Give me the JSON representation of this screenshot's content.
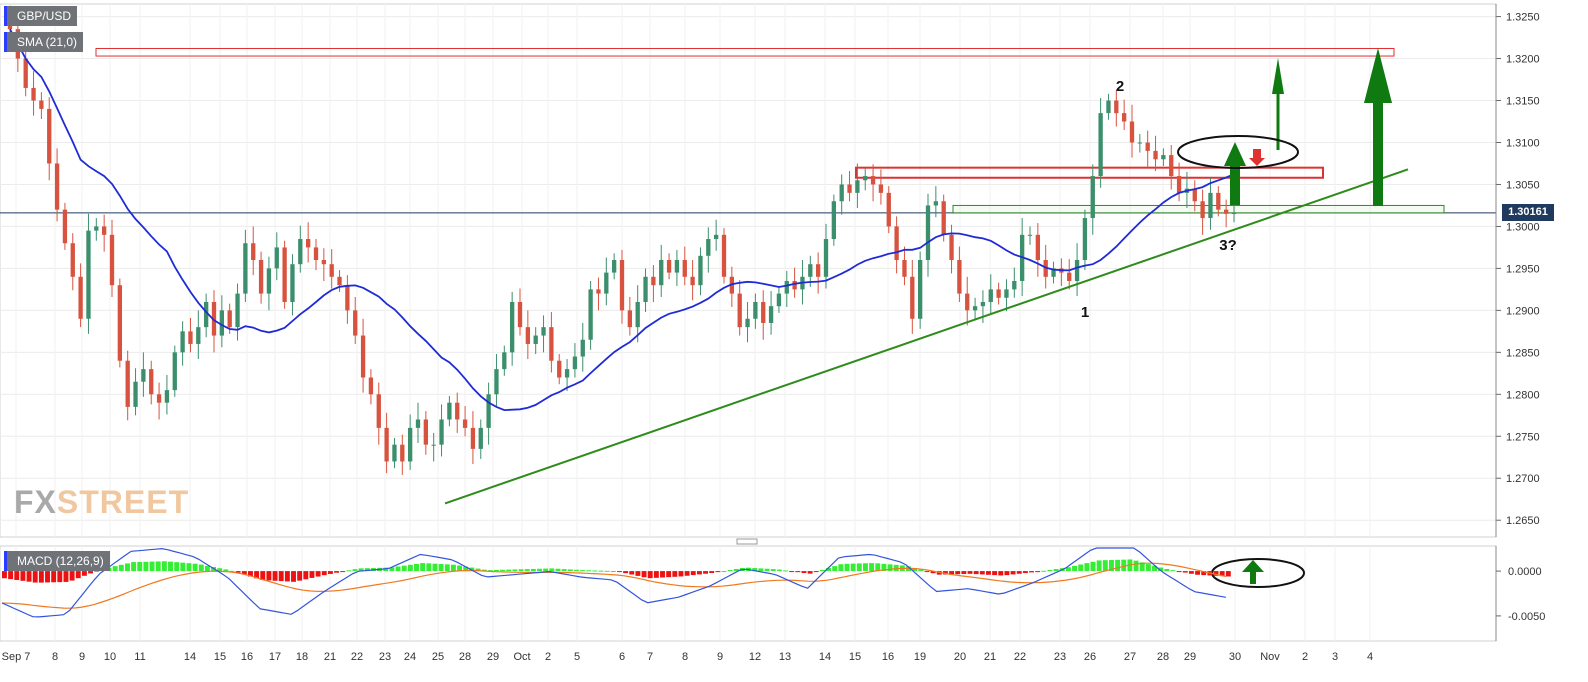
{
  "symbol_label": "GBP/USD",
  "indicator_label": "SMA (21,0)",
  "macd_label": "MACD (12,26,9)",
  "watermark": {
    "part1": "FX",
    "part2": "STREET"
  },
  "current_price": "1.30161",
  "annotations": {
    "wave1": "1",
    "wave2": "2",
    "wave3": "3?"
  },
  "colors": {
    "up": "#3c8f6c",
    "down": "#d8533f",
    "sma": "#1f2bd6",
    "trend": "#2e8b1c",
    "arrow": "#0f7a0f",
    "zone": "#e03030",
    "macd_pos": "#33ee33",
    "macd_neg": "#ee1111",
    "macd_line": "#3355dd",
    "signal_line": "#f07a20"
  },
  "chart_data": [
    {
      "type": "candlestick",
      "title": "GBP/USD",
      "y_ticks": [
        "1.3250",
        "1.3200",
        "1.3150",
        "1.3100",
        "1.3050",
        "1.3000",
        "1.2950",
        "1.2900",
        "1.2850",
        "1.2800",
        "1.2750",
        "1.2700",
        "1.2650"
      ],
      "x_ticks": [
        "Sep 7",
        "8",
        "9",
        "10",
        "11",
        "14",
        "15",
        "16",
        "17",
        "18",
        "21",
        "22",
        "23",
        "24",
        "25",
        "28",
        "29",
        "Oct",
        "2",
        "5",
        "6",
        "7",
        "8",
        "9",
        "12",
        "13",
        "14",
        "15",
        "16",
        "19",
        "20",
        "21",
        "22",
        "23",
        "26",
        "27",
        "28",
        "29",
        "30",
        "Nov",
        "2",
        "3",
        "4"
      ],
      "ylim": [
        1.263,
        1.3265
      ],
      "series_name": "SMA (21,0)",
      "close": [
        1.3235,
        1.32,
        1.3165,
        1.315,
        1.314,
        1.3075,
        1.302,
        1.298,
        1.294,
        1.289,
        1.2995,
        1.3,
        1.299,
        1.293,
        1.284,
        1.2785,
        1.2815,
        1.283,
        1.28,
        1.279,
        1.2805,
        1.285,
        1.2875,
        1.286,
        1.288,
        1.291,
        1.287,
        1.29,
        1.288,
        1.292,
        1.298,
        1.296,
        1.292,
        1.295,
        1.2975,
        1.291,
        1.2955,
        1.2985,
        1.2975,
        1.296,
        1.2955,
        1.294,
        1.293,
        1.29,
        1.287,
        1.282,
        1.28,
        1.276,
        1.272,
        1.274,
        1.272,
        1.276,
        1.277,
        1.274,
        1.274,
        1.277,
        1.279,
        1.277,
        1.276,
        1.2735,
        1.276,
        1.28,
        1.283,
        1.285,
        1.291,
        1.288,
        1.286,
        1.287,
        1.288,
        1.284,
        1.282,
        1.283,
        1.2845,
        1.2865,
        1.2925,
        1.292,
        1.2945,
        1.296,
        1.29,
        1.288,
        1.291,
        1.294,
        1.293,
        1.296,
        1.2945,
        1.296,
        1.294,
        1.293,
        1.2965,
        1.2985,
        1.299,
        1.294,
        1.292,
        1.288,
        1.289,
        1.291,
        1.2885,
        1.2905,
        1.292,
        1.2935,
        1.2925,
        1.294,
        1.2955,
        1.294,
        1.2985,
        1.303,
        1.305,
        1.304,
        1.3055,
        1.306,
        1.305,
        1.304,
        1.3,
        1.296,
        1.294,
        1.289,
        1.296,
        1.3025,
        1.303,
        1.299,
        1.296,
        1.292,
        1.29,
        1.2905,
        1.291,
        1.2925,
        1.2915,
        1.2925,
        1.2935,
        1.299,
        1.299,
        1.296,
        1.294,
        1.295,
        1.2945,
        1.2935,
        1.296,
        1.301,
        1.306,
        1.3135,
        1.315,
        1.3135,
        1.3125,
        1.31,
        1.31,
        1.309,
        1.308,
        1.3085,
        1.306,
        1.304,
        1.3045,
        1.303,
        1.301,
        1.304,
        1.302,
        1.3015,
        1.3016
      ],
      "horizontal_zones": [
        [
          1.3203,
          1.3212
        ],
        [
          1.3058,
          1.307
        ],
        [
          1.3016,
          1.3025
        ]
      ],
      "trendline": [
        [
          1.267,
          0
        ],
        [
          1.3068,
          1
        ]
      ]
    },
    {
      "type": "bar",
      "title": "MACD (12,26,9)",
      "y_ticks": [
        "0.0000",
        "-0.0050"
      ],
      "ylim": [
        -0.0078,
        0.0028
      ],
      "histogram_profile": [
        -0.0008,
        -0.0013,
        -0.0012,
        0.0002,
        0.001,
        0.0011,
        0.0008,
        0.0001,
        -0.001,
        -0.0012,
        -0.0004,
        0.0003,
        0.0004,
        0.0009,
        0.0007,
        0.0001,
        0.0002,
        0.0003,
        0.0001,
        0.0,
        -0.0008,
        -0.0006,
        -0.0002,
        0.0004,
        0.0002,
        -0.0003,
        0.0008,
        0.0009,
        0.0006,
        -0.0004,
        -0.0003,
        -0.0005,
        -0.0001,
        0.0004,
        0.0012,
        0.0013,
        0.0003,
        -0.0004,
        -0.0006
      ]
    }
  ]
}
